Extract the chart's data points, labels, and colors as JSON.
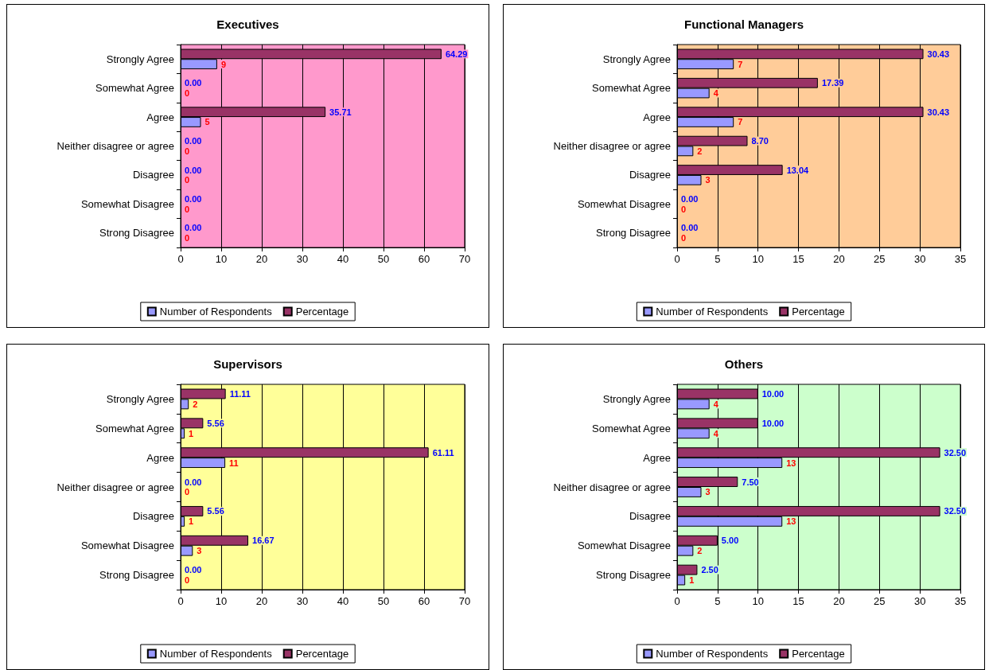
{
  "chart_data": [
    {
      "type": "bar",
      "orientation": "horizontal",
      "title": "Executives",
      "categories": [
        "Strongly Agree",
        "Somewhat Agree",
        "Agree",
        "Neither disagree or agree",
        "Disagree",
        "Somewhat Disagree",
        "Strong Disagree"
      ],
      "series": [
        {
          "name": "Number of Respondents",
          "color": "#9999ff",
          "values": [
            9,
            0,
            5,
            0,
            0,
            0,
            0
          ],
          "value_labels": [
            "9",
            "0",
            "5",
            "0",
            "0",
            "0",
            "0"
          ]
        },
        {
          "name": "Percentage",
          "color": "#993366",
          "values": [
            64.29,
            0,
            35.71,
            0,
            0,
            0,
            0
          ],
          "value_labels": [
            "64.29",
            "0.00",
            "35.71",
            "0.00",
            "0.00",
            "0.00",
            "0.00"
          ]
        }
      ],
      "xlim": [
        0,
        70
      ],
      "xticks": [
        0,
        10,
        20,
        30,
        40,
        50,
        60,
        70
      ],
      "grid": "x",
      "legend": "bottom"
    },
    {
      "type": "bar",
      "orientation": "horizontal",
      "title": "Functional Managers",
      "categories": [
        "Strongly Agree",
        "Somewhat Agree",
        "Agree",
        "Neither disagree or agree",
        "Disagree",
        "Somewhat Disagree",
        "Strong Disagree"
      ],
      "series": [
        {
          "name": "Number of Respondents",
          "color": "#9999ff",
          "values": [
            7,
            4,
            7,
            2,
            3,
            0,
            0
          ],
          "value_labels": [
            "7",
            "4",
            "7",
            "2",
            "3",
            "0",
            "0"
          ]
        },
        {
          "name": "Percentage",
          "color": "#993366",
          "values": [
            30.43,
            17.39,
            30.43,
            8.7,
            13.04,
            0,
            0
          ],
          "value_labels": [
            "30.43",
            "17.39",
            "30.43",
            "8.70",
            "13.04",
            "0.00",
            "0.00"
          ]
        }
      ],
      "xlim": [
        0,
        35
      ],
      "xticks": [
        0,
        5,
        10,
        15,
        20,
        25,
        30,
        35
      ],
      "grid": "x",
      "legend": "bottom"
    },
    {
      "type": "bar",
      "orientation": "horizontal",
      "title": "Supervisors",
      "categories": [
        "Strongly Agree",
        "Somewhat Agree",
        "Agree",
        "Neither disagree or agree",
        "Disagree",
        "Somewhat Disagree",
        "Strong Disagree"
      ],
      "series": [
        {
          "name": "Number of Respondents",
          "color": "#9999ff",
          "values": [
            2,
            1,
            11,
            0,
            1,
            3,
            0
          ],
          "value_labels": [
            "2",
            "1",
            "11",
            "0",
            "1",
            "3",
            "0"
          ]
        },
        {
          "name": "Percentage",
          "color": "#993366",
          "values": [
            11.11,
            5.56,
            61.11,
            0,
            5.56,
            16.67,
            0
          ],
          "value_labels": [
            "11.11",
            "5.56",
            "61.11",
            "0.00",
            "5.56",
            "16.67",
            "0.00"
          ]
        }
      ],
      "xlim": [
        0,
        70
      ],
      "xticks": [
        0,
        10,
        20,
        30,
        40,
        50,
        60,
        70
      ],
      "grid": "x",
      "legend": "bottom"
    },
    {
      "type": "bar",
      "orientation": "horizontal",
      "title": "Others",
      "categories": [
        "Strongly Agree",
        "Somewhat Agree",
        "Agree",
        "Neither disagree or agree",
        "Disagree",
        "Somewhat Disagree",
        "Strong Disagree"
      ],
      "series": [
        {
          "name": "Number of Respondents",
          "color": "#9999ff",
          "values": [
            4,
            4,
            13,
            3,
            13,
            2,
            1
          ],
          "value_labels": [
            "4",
            "4",
            "13",
            "3",
            "13",
            "2",
            "1"
          ]
        },
        {
          "name": "Percentage",
          "color": "#993366",
          "values": [
            10,
            10,
            32.5,
            7.5,
            32.5,
            5,
            2.5
          ],
          "value_labels": [
            "10.00",
            "10.00",
            "32.50",
            "7.50",
            "32.50",
            "5.00",
            "2.50"
          ]
        }
      ],
      "xlim": [
        0,
        35
      ],
      "xticks": [
        0,
        5,
        10,
        15,
        20,
        25,
        30,
        35
      ],
      "grid": "x",
      "legend": "bottom"
    }
  ]
}
